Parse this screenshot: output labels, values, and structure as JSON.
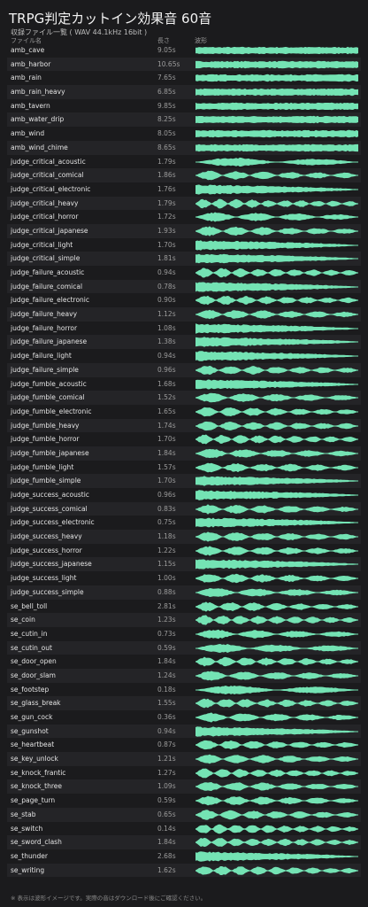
{
  "header": {
    "title": "TRPG判定カットイン効果音 60音",
    "subtitle": "収録ファイル一覧 ( WAV 44.1kHz 16bit )"
  },
  "table": {
    "columns": [
      "ファイル名",
      "長さ",
      "波形"
    ],
    "rows": [
      [
        "amb_cave",
        "9.05s"
      ],
      [
        "amb_harbor",
        "10.65s"
      ],
      [
        "amb_rain",
        "7.65s"
      ],
      [
        "amb_rain_heavy",
        "6.85s"
      ],
      [
        "amb_tavern",
        "9.85s"
      ],
      [
        "amb_water_drip",
        "8.25s"
      ],
      [
        "amb_wind",
        "8.05s"
      ],
      [
        "amb_wind_chime",
        "8.65s"
      ],
      [
        "judge_critical_acoustic",
        "1.79s"
      ],
      [
        "judge_critical_comical",
        "1.86s"
      ],
      [
        "judge_critical_electronic",
        "1.76s"
      ],
      [
        "judge_critical_heavy",
        "1.79s"
      ],
      [
        "judge_critical_horror",
        "1.72s"
      ],
      [
        "judge_critical_japanese",
        "1.93s"
      ],
      [
        "judge_critical_light",
        "1.70s"
      ],
      [
        "judge_critical_simple",
        "1.81s"
      ],
      [
        "judge_failure_acoustic",
        "0.94s"
      ],
      [
        "judge_failure_comical",
        "0.78s"
      ],
      [
        "judge_failure_electronic",
        "0.90s"
      ],
      [
        "judge_failure_heavy",
        "1.12s"
      ],
      [
        "judge_failure_horror",
        "1.08s"
      ],
      [
        "judge_failure_japanese",
        "1.38s"
      ],
      [
        "judge_failure_light",
        "0.94s"
      ],
      [
        "judge_failure_simple",
        "0.96s"
      ],
      [
        "judge_fumble_acoustic",
        "1.68s"
      ],
      [
        "judge_fumble_comical",
        "1.52s"
      ],
      [
        "judge_fumble_electronic",
        "1.65s"
      ],
      [
        "judge_fumble_heavy",
        "1.74s"
      ],
      [
        "judge_fumble_horror",
        "1.70s"
      ],
      [
        "judge_fumble_japanese",
        "1.84s"
      ],
      [
        "judge_fumble_light",
        "1.57s"
      ],
      [
        "judge_fumble_simple",
        "1.70s"
      ],
      [
        "judge_success_acoustic",
        "0.96s"
      ],
      [
        "judge_success_comical",
        "0.83s"
      ],
      [
        "judge_success_electronic",
        "0.75s"
      ],
      [
        "judge_success_heavy",
        "1.18s"
      ],
      [
        "judge_success_horror",
        "1.22s"
      ],
      [
        "judge_success_japanese",
        "1.15s"
      ],
      [
        "judge_success_light",
        "1.00s"
      ],
      [
        "judge_success_simple",
        "0.88s"
      ],
      [
        "se_bell_toll",
        "2.81s"
      ],
      [
        "se_coin",
        "1.23s"
      ],
      [
        "se_cutin_in",
        "0.73s"
      ],
      [
        "se_cutin_out",
        "0.59s"
      ],
      [
        "se_door_open",
        "1.84s"
      ],
      [
        "se_door_slam",
        "1.24s"
      ],
      [
        "se_footstep",
        "0.18s"
      ],
      [
        "se_glass_break",
        "1.55s"
      ],
      [
        "se_gun_cock",
        "0.36s"
      ],
      [
        "se_gunshot",
        "0.94s"
      ],
      [
        "se_heartbeat",
        "0.87s"
      ],
      [
        "se_key_unlock",
        "1.21s"
      ],
      [
        "se_knock_frantic",
        "1.27s"
      ],
      [
        "se_knock_three",
        "1.09s"
      ],
      [
        "se_page_turn",
        "0.59s"
      ],
      [
        "se_stab",
        "0.65s"
      ],
      [
        "se_switch",
        "0.14s"
      ],
      [
        "se_sword_clash",
        "1.84s"
      ],
      [
        "se_thunder",
        "2.68s"
      ],
      [
        "se_writing",
        "1.62s"
      ]
    ]
  },
  "footer": {
    "note": "※ 表示は波形イメージです。実際の音はダウンロード後にご確認ください。"
  }
}
